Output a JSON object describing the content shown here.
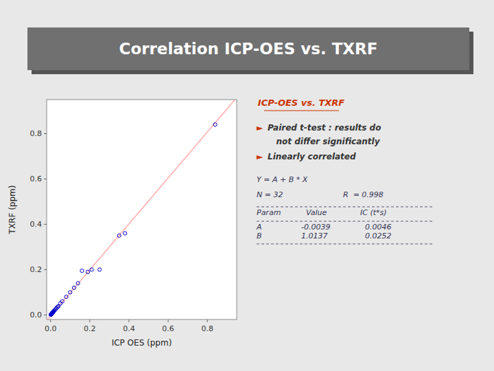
{
  "chart_data": {
    "type": "scatter",
    "title": "Correlation ICP-OES vs. TXRF",
    "x_label": "ICP OES (ppm)",
    "y_label": "TXRF (ppm)",
    "x": [
      0.001,
      0.002,
      0.003,
      0.004,
      0.005,
      0.007,
      0.008,
      0.009,
      0.01,
      0.011,
      0.012,
      0.013,
      0.015,
      0.018,
      0.02,
      0.025,
      0.03,
      0.035,
      0.04,
      0.05,
      0.06,
      0.08,
      0.1,
      0.12,
      0.14,
      0.16,
      0.19,
      0.21,
      0.25,
      0.35,
      0.38,
      0.84
    ],
    "values": [
      0.001,
      0.002,
      0.003,
      0.004,
      0.005,
      0.007,
      0.008,
      0.009,
      0.01,
      0.011,
      0.012,
      0.013,
      0.015,
      0.018,
      0.02,
      0.025,
      0.03,
      0.035,
      0.038,
      0.051,
      0.06,
      0.08,
      0.1,
      0.12,
      0.14,
      0.195,
      0.19,
      0.2,
      0.2,
      0.35,
      0.36,
      0.84
    ],
    "color": "#0000cc",
    "marker": "open-circle",
    "regression": {
      "intercept": -0.0039,
      "slope": 1.0137,
      "color": "#ffaaaa"
    },
    "xlim": [
      -0.02,
      0.95
    ],
    "ylim": [
      -0.02,
      0.95
    ],
    "xticks": [
      {
        "value": 0.0,
        "label": "0.0"
      },
      0.2,
      0.4,
      0.6,
      0.8
    ],
    "yticks": [
      {
        "value": 0.0,
        "label": "0.0"
      },
      0.2,
      0.4,
      0.6,
      0.8
    ],
    "grid": false,
    "annotations": [
      {
        "text": "ICP-OES vs. TXRF",
        "color": "#cc3300"
      },
      {
        "text": "►",
        "color": "#cc3300"
      },
      {
        "text": "Paired t-test : results do",
        "color": "#333333"
      },
      {
        "text": "   not differ significantly",
        "color": "#333333"
      },
      {
        "text": "►",
        "color": "#cc3300"
      },
      {
        "text": "Linearly correlated",
        "color": "#333333"
      },
      {
        "text": "Y = A + B * X",
        "color": "#333355"
      },
      {
        "text": "N = 32",
        "color": "#333355"
      },
      {
        "text": "R  = 0.998",
        "color": "#333355"
      },
      {
        "text": "Param",
        "color": "#333355"
      },
      {
        "text": "Value",
        "color": "#333355"
      },
      {
        "text": "IC (t*s)",
        "color": "#333355"
      },
      {
        "text": "A",
        "color": "#333355"
      },
      {
        "text": "-0.0039",
        "color": "#333355"
      },
      {
        "text": "0.0046",
        "color": "#333355"
      },
      {
        "text": "B",
        "color": "#333355"
      },
      {
        "text": "1.0137",
        "color": "#333355"
      },
      {
        "text": "0.0252",
        "color": "#333355"
      }
    ]
  }
}
